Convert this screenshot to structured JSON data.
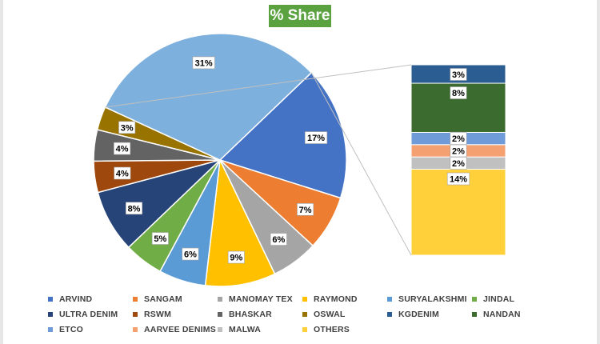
{
  "title": "% Share",
  "chart_data": {
    "type": "pie",
    "title": "% Share",
    "pie": {
      "slices": [
        {
          "name": "ARVIND",
          "value": 17,
          "label": "17%",
          "color": "#4472c4"
        },
        {
          "name": "SANGAM",
          "value": 7,
          "label": "7%",
          "color": "#ed7d31"
        },
        {
          "name": "MANOMAY TEX",
          "value": 6,
          "label": "6%",
          "color": "#a5a5a5"
        },
        {
          "name": "RAYMOND",
          "value": 9,
          "label": "9%",
          "color": "#ffc000"
        },
        {
          "name": "SURYALAKSHMI",
          "value": 6,
          "label": "6%",
          "color": "#5b9bd5"
        },
        {
          "name": "JINDAL",
          "value": 5,
          "label": "5%",
          "color": "#70ad47"
        },
        {
          "name": "ULTRA DENIM",
          "value": 8,
          "label": "8%",
          "color": "#264478"
        },
        {
          "name": "RSWM",
          "value": 4,
          "label": "4%",
          "color": "#9e480e"
        },
        {
          "name": "BHASKAR",
          "value": 4,
          "label": "4%",
          "color": "#636363"
        },
        {
          "name": "OSWAL",
          "value": 3,
          "label": "3%",
          "color": "#997300"
        },
        {
          "name": "Other",
          "value": 31,
          "label": "31%",
          "color": "#7eb0de"
        }
      ]
    },
    "bar_of_pie": {
      "segments": [
        {
          "name": "OTHERS",
          "value": 14,
          "label": "14%",
          "color": "#ffd03a"
        },
        {
          "name": "MALWA",
          "value": 2,
          "label": "2%",
          "color": "#c0c0c0"
        },
        {
          "name": "AARVEE DENIMS",
          "value": 2,
          "label": "2%",
          "color": "#f4a070"
        },
        {
          "name": "ETCO",
          "value": 2,
          "label": "2%",
          "color": "#6f9bd8"
        },
        {
          "name": "NANDAN",
          "value": 8,
          "label": "8%",
          "color": "#3b6b2e"
        },
        {
          "name": "KGDENIM",
          "value": 3,
          "label": "3%",
          "color": "#2b5d92"
        }
      ]
    },
    "legend": {
      "position": "bottom",
      "entries": [
        {
          "name": "ARVIND",
          "color": "#4472c4"
        },
        {
          "name": "SANGAM",
          "color": "#ed7d31"
        },
        {
          "name": "MANOMAY TEX",
          "color": "#a5a5a5"
        },
        {
          "name": "RAYMOND",
          "color": "#ffc000"
        },
        {
          "name": "SURYALAKSHMI",
          "color": "#5b9bd5"
        },
        {
          "name": "JINDAL",
          "color": "#70ad47"
        },
        {
          "name": "ULTRA DENIM",
          "color": "#264478"
        },
        {
          "name": "RSWM",
          "color": "#9e480e"
        },
        {
          "name": "BHASKAR",
          "color": "#636363"
        },
        {
          "name": "OSWAL",
          "color": "#997300"
        },
        {
          "name": "KGDENIM",
          "color": "#2b5d92"
        },
        {
          "name": "NANDAN",
          "color": "#3b6b2e"
        },
        {
          "name": "ETCO",
          "color": "#6f9bd8"
        },
        {
          "name": "AARVEE DENIMS",
          "color": "#f4a070"
        },
        {
          "name": "MALWA",
          "color": "#c0c0c0"
        },
        {
          "name": "OTHERS",
          "color": "#ffd03a"
        }
      ]
    }
  }
}
